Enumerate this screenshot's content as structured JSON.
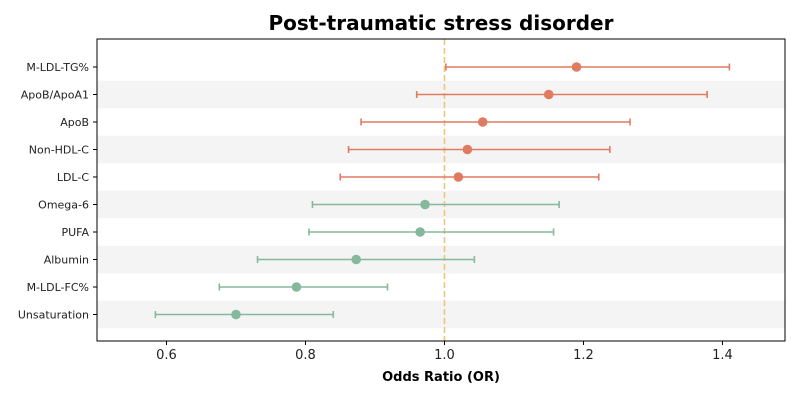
{
  "chart_data": {
    "type": "scatter",
    "title": "Post-traumatic stress disorder",
    "xlabel": "Odds Ratio (OR)",
    "ylabel": "",
    "xlim": [
      0.5,
      1.49
    ],
    "xticks": [
      "0.6",
      "0.8",
      "1.0",
      "1.2",
      "1.4"
    ],
    "reference_line": 1.0,
    "colors": {
      "risk": "#e07b61",
      "protective": "#86b89e",
      "reference": "#f2c27e",
      "band": "#f4f4f4"
    },
    "rows": [
      {
        "label": "M-LDL-TG%",
        "or": 1.19,
        "lower": 1.002,
        "upper": 1.41,
        "group": "risk"
      },
      {
        "label": "ApoB/ApoA1",
        "or": 1.15,
        "lower": 0.96,
        "upper": 1.378,
        "group": "risk"
      },
      {
        "label": "ApoB",
        "or": 1.055,
        "lower": 0.88,
        "upper": 1.267,
        "group": "risk"
      },
      {
        "label": "Non-HDL-C",
        "or": 1.033,
        "lower": 0.862,
        "upper": 1.238,
        "group": "risk"
      },
      {
        "label": "LDL-C",
        "or": 1.02,
        "lower": 0.85,
        "upper": 1.222,
        "group": "risk"
      },
      {
        "label": "Omega-6",
        "or": 0.972,
        "lower": 0.81,
        "upper": 1.165,
        "group": "protective"
      },
      {
        "label": "PUFA",
        "or": 0.965,
        "lower": 0.805,
        "upper": 1.157,
        "group": "protective"
      },
      {
        "label": "Albumin",
        "or": 0.873,
        "lower": 0.731,
        "upper": 1.043,
        "group": "protective"
      },
      {
        "label": "M-LDL-FC%",
        "or": 0.787,
        "lower": 0.676,
        "upper": 0.918,
        "group": "protective"
      },
      {
        "label": "Unsaturation",
        "or": 0.7,
        "lower": 0.584,
        "upper": 0.84,
        "group": "protective"
      }
    ]
  }
}
